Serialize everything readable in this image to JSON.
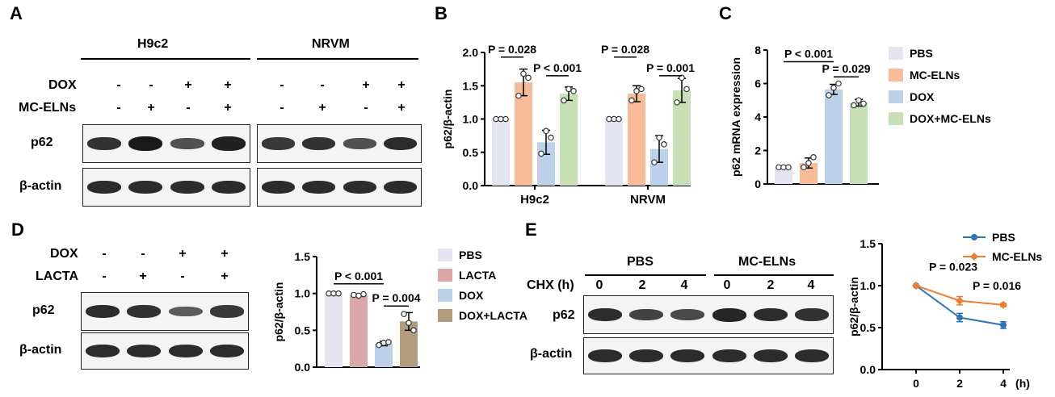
{
  "panels": {
    "a": "A",
    "b": "B",
    "c": "C",
    "d": "D",
    "e": "E"
  },
  "panelA": {
    "groups": [
      "H9c2",
      "NRVM"
    ],
    "row_labels": [
      "DOX",
      "MC-ELNs"
    ],
    "dox_signs": [
      "-",
      "-",
      "+",
      "+"
    ],
    "mc_signs": [
      "-",
      "+",
      "-",
      "+"
    ],
    "blot_labels": [
      "p62",
      "β-actin"
    ],
    "p62_intensity": [
      0.8,
      1.0,
      0.55,
      0.95,
      0.75,
      0.8,
      0.55,
      0.85
    ],
    "actin_intensity": [
      0.85,
      0.85,
      0.85,
      0.85,
      0.85,
      0.85,
      0.85,
      0.85
    ]
  },
  "panelD": {
    "row_labels": [
      "DOX",
      "LACTA"
    ],
    "dox_signs": [
      "-",
      "-",
      "+",
      "+"
    ],
    "lacta_signs": [
      "-",
      "+",
      "-",
      "+"
    ],
    "blot_labels": [
      "p62",
      "β-actin"
    ],
    "p62_intensity": [
      0.85,
      0.8,
      0.45,
      0.75
    ],
    "actin_intensity": [
      0.85,
      0.85,
      0.85,
      0.85
    ]
  },
  "panelE": {
    "groups": [
      "PBS",
      "MC-ELNs"
    ],
    "chx_label": "CHX (h)",
    "times": [
      "0",
      "2",
      "4",
      "0",
      "2",
      "4"
    ],
    "blot_labels": [
      "p62",
      "β-actin"
    ],
    "p62_intensity": [
      0.85,
      0.65,
      0.6,
      0.9,
      0.85,
      0.8
    ],
    "actin_intensity": [
      0.85,
      0.85,
      0.85,
      0.85,
      0.85,
      0.85
    ]
  },
  "colors": {
    "pbs": "#e4e4f2",
    "mc": "#f8bd98",
    "dox": "#bcd0ea",
    "doxmc": "#c8e0b6",
    "lacta": "#dba7a7",
    "doxlacta": "#b39c7d",
    "line_pbs": "#2e75b6",
    "line_mc": "#ed7d31"
  },
  "chart_data": [
    {
      "type": "bar",
      "panel": "B",
      "ylabel": "p62/β-actin",
      "ylim": [
        0,
        2.0
      ],
      "yticks": [
        "0.0",
        "0.5",
        "1.0",
        "1.5",
        "2.0"
      ],
      "categories": [
        "H9c2",
        "NRVM"
      ],
      "series": [
        {
          "name": "PBS",
          "values": [
            1.0,
            1.0
          ],
          "sd": [
            0,
            0
          ],
          "points": [
            [
              1.0,
              1.0,
              1.0
            ],
            [
              1.0,
              1.0,
              1.0
            ]
          ]
        },
        {
          "name": "MC-ELNs",
          "values": [
            1.55,
            1.38
          ],
          "sd": [
            0.2,
            0.12
          ],
          "points": [
            [
              1.35,
              1.68,
              1.62
            ],
            [
              1.28,
              1.42,
              1.45
            ]
          ]
        },
        {
          "name": "DOX",
          "values": [
            0.65,
            0.55
          ],
          "sd": [
            0.18,
            0.2
          ],
          "points": [
            [
              0.48,
              0.82,
              0.72
            ],
            [
              0.35,
              0.72,
              0.62
            ]
          ]
        },
        {
          "name": "DOX+MC-ELNs",
          "values": [
            1.38,
            1.43
          ],
          "sd": [
            0.1,
            0.18
          ],
          "points": [
            [
              1.28,
              1.45,
              1.42
            ],
            [
              1.25,
              1.62,
              1.45
            ]
          ]
        }
      ],
      "annotations": [
        "P = 0.028",
        "P < 0.001",
        "P = 0.028",
        "P = 0.001"
      ]
    },
    {
      "type": "bar",
      "panel": "C",
      "ylabel": "p62 mRNA expression",
      "ylim": [
        0,
        8
      ],
      "yticks": [
        "0",
        "2",
        "4",
        "6",
        "8"
      ],
      "categories": [
        "PBS",
        "MC-ELNs",
        "DOX",
        "DOX+MC-ELNs"
      ],
      "values": [
        1.0,
        1.25,
        5.65,
        4.85
      ],
      "sd": [
        0,
        0.3,
        0.3,
        0.2
      ],
      "points": [
        [
          1.0,
          1.0,
          1.0
        ],
        [
          1.0,
          1.25,
          1.6
        ],
        [
          5.3,
          5.75,
          6.0
        ],
        [
          4.7,
          5.0,
          4.8
        ]
      ],
      "annotations": [
        "P < 0.001",
        "P = 0.029"
      ],
      "legend": [
        "PBS",
        "MC-ELNs",
        "DOX",
        "DOX+MC-ELNs"
      ]
    },
    {
      "type": "bar",
      "panel": "D",
      "ylabel": "p62/β-actin",
      "ylim": [
        0,
        1.5
      ],
      "yticks": [
        "0.0",
        "0.5",
        "1.0",
        "1.5"
      ],
      "categories": [
        "PBS",
        "LACTA",
        "DOX",
        "DOX+LACTA"
      ],
      "values": [
        1.0,
        0.98,
        0.32,
        0.62
      ],
      "sd": [
        0,
        0.01,
        0.03,
        0.12
      ],
      "points": [
        [
          1.0,
          1.0,
          1.0
        ],
        [
          0.98,
          0.97,
          0.99
        ],
        [
          0.3,
          0.33,
          0.34
        ],
        [
          0.72,
          0.6,
          0.5
        ]
      ],
      "annotations": [
        "P < 0.001",
        "P = 0.004"
      ],
      "legend": [
        "PBS",
        "LACTA",
        "DOX",
        "DOX+LACTA"
      ]
    },
    {
      "type": "line",
      "panel": "E",
      "ylabel": "p62/β-actin",
      "xlabel": "(h)",
      "x": [
        0,
        2,
        4
      ],
      "xticks": [
        "0",
        "2",
        "4"
      ],
      "ylim": [
        0,
        1.5
      ],
      "yticks": [
        "0.0",
        "0.5",
        "1.0",
        "1.5"
      ],
      "series": [
        {
          "name": "PBS",
          "values": [
            1.0,
            0.62,
            0.53
          ],
          "sd": [
            0,
            0.05,
            0.04
          ]
        },
        {
          "name": "MC-ELNs",
          "values": [
            1.0,
            0.82,
            0.77
          ],
          "sd": [
            0,
            0.05,
            0.02
          ]
        }
      ],
      "annotations": [
        "P = 0.023",
        "P = 0.016"
      ],
      "legend": [
        "PBS",
        "MC-ELNs"
      ]
    }
  ]
}
